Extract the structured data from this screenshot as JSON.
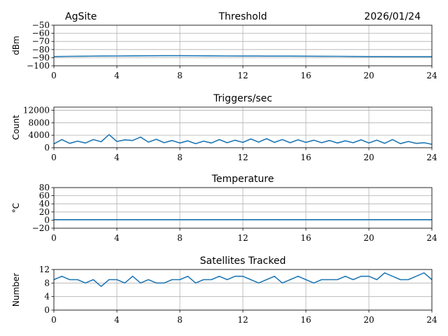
{
  "header": {
    "site": "AgSite",
    "date": "2026/01/24"
  },
  "style": {
    "line_color": "#1f77b4",
    "grid_color": "#b0b0b0"
  },
  "chart_data": [
    {
      "type": "line",
      "title": "Threshold",
      "ylabel": "dBm",
      "xlim": [
        0,
        24
      ],
      "ylim": [
        -100,
        -50
      ],
      "xticks": [
        0,
        4,
        8,
        12,
        16,
        20,
        24
      ],
      "yticks": [
        -100,
        -90,
        -80,
        -70,
        -60,
        -50
      ],
      "grid": true,
      "series": [
        {
          "x": [
            0,
            1,
            2,
            3,
            4,
            5,
            6,
            7,
            8,
            9,
            10,
            11,
            12,
            13,
            14,
            15,
            16,
            17,
            18,
            19,
            20,
            21,
            22,
            23,
            24
          ],
          "values": [
            -88.6,
            -88.4,
            -88.2,
            -88.0,
            -87.9,
            -87.8,
            -87.7,
            -87.6,
            -87.6,
            -87.7,
            -87.8,
            -87.9,
            -88.0,
            -88.0,
            -88.1,
            -88.1,
            -88.2,
            -88.3,
            -88.4,
            -88.5,
            -88.6,
            -88.6,
            -88.7,
            -88.7,
            -88.7
          ]
        }
      ]
    },
    {
      "type": "line",
      "title": "Triggers/sec",
      "ylabel": "Count",
      "xlim": [
        0,
        24
      ],
      "ylim": [
        0,
        13000
      ],
      "xticks": [
        0,
        4,
        8,
        12,
        16,
        20,
        24
      ],
      "yticks": [
        0,
        4000,
        8000,
        12000
      ],
      "grid": true,
      "series": [
        {
          "x": [
            0,
            0.5,
            1,
            1.5,
            2,
            2.5,
            3,
            3.5,
            4,
            4.5,
            5,
            5.5,
            6,
            6.5,
            7,
            7.5,
            8,
            8.5,
            9,
            9.5,
            10,
            10.5,
            11,
            11.5,
            12,
            12.5,
            13,
            13.5,
            14,
            14.5,
            15,
            15.5,
            16,
            16.5,
            17,
            17.5,
            18,
            18.5,
            19,
            19.5,
            20,
            20.5,
            21,
            21.5,
            22,
            22.5,
            23,
            23.5,
            24
          ],
          "values": [
            1200,
            2600,
            1400,
            2100,
            1500,
            2600,
            1900,
            4200,
            2000,
            2500,
            2300,
            3400,
            1800,
            2700,
            1600,
            2300,
            1500,
            2200,
            1300,
            2100,
            1500,
            2600,
            1600,
            2400,
            1700,
            2800,
            1800,
            2900,
            1700,
            2600,
            1600,
            2500,
            1700,
            2400,
            1600,
            2300,
            1500,
            2200,
            1600,
            2500,
            1500,
            2400,
            1400,
            2600,
            1300,
            2000,
            1400,
            1600,
            1100
          ]
        }
      ]
    },
    {
      "type": "line",
      "title": "Temperature",
      "ylabel": "°C",
      "xlim": [
        0,
        24
      ],
      "ylim": [
        -20,
        80
      ],
      "xticks": [
        0,
        4,
        8,
        12,
        16,
        20,
        24
      ],
      "yticks": [
        -20,
        0,
        20,
        40,
        60,
        80
      ],
      "grid": true,
      "series": [
        {
          "x": [
            0,
            4,
            8,
            12,
            16,
            20,
            24
          ],
          "values": [
            1,
            1,
            1,
            1,
            1,
            1,
            1
          ]
        }
      ]
    },
    {
      "type": "line",
      "title": "Satellites Tracked",
      "ylabel": "Number",
      "xlim": [
        0,
        24
      ],
      "ylim": [
        0,
        12
      ],
      "xticks": [
        0,
        4,
        8,
        12,
        16,
        20,
        24
      ],
      "yticks": [
        0,
        4,
        8,
        12
      ],
      "grid": true,
      "series": [
        {
          "x": [
            0,
            0.5,
            1,
            1.5,
            2,
            2.5,
            3,
            3.5,
            4,
            4.5,
            5,
            5.5,
            6,
            6.5,
            7,
            7.5,
            8,
            8.5,
            9,
            9.5,
            10,
            10.5,
            11,
            11.5,
            12,
            12.5,
            13,
            13.5,
            14,
            14.5,
            15,
            15.5,
            16,
            16.5,
            17,
            17.5,
            18,
            18.5,
            19,
            19.5,
            20,
            20.5,
            21,
            21.5,
            22,
            22.5,
            23,
            23.5,
            24
          ],
          "values": [
            9,
            10,
            9,
            9,
            8,
            9,
            7,
            9,
            9,
            8,
            10,
            8,
            9,
            8,
            8,
            9,
            9,
            10,
            8,
            9,
            9,
            10,
            9,
            10,
            10,
            9,
            8,
            9,
            10,
            8,
            9,
            10,
            9,
            8,
            9,
            9,
            9,
            10,
            9,
            10,
            10,
            9,
            11,
            10,
            9,
            9,
            10,
            11,
            9
          ]
        }
      ]
    }
  ]
}
